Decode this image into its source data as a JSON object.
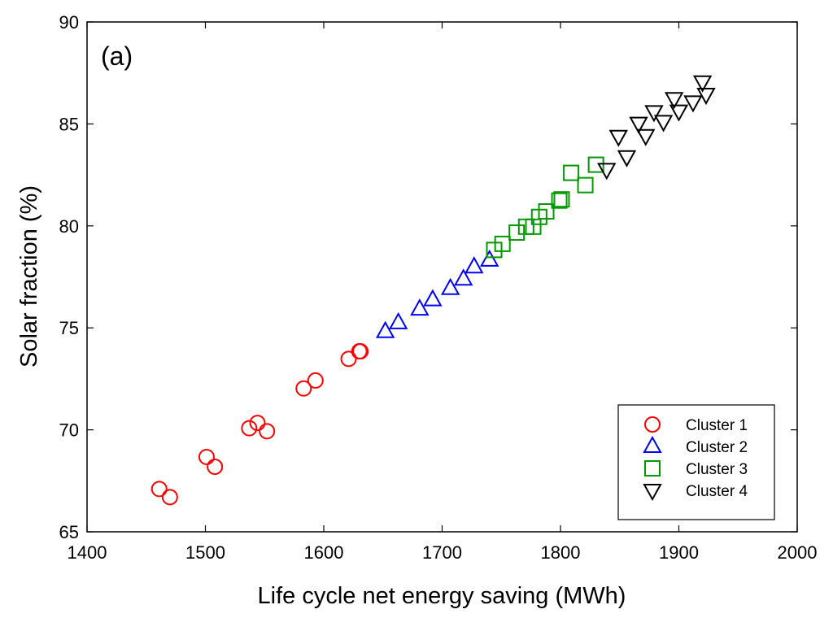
{
  "chart_data": {
    "type": "scatter",
    "panel_label": "(a)",
    "xlabel": "Life cycle net energy saving (MWh)",
    "ylabel": "Solar fraction (%)",
    "xlim": [
      1400,
      2000
    ],
    "ylim": [
      65,
      90
    ],
    "xticks": [
      1400,
      1500,
      1600,
      1700,
      1800,
      1900,
      2000
    ],
    "yticks": [
      65,
      70,
      75,
      80,
      85,
      90
    ],
    "grid": false,
    "legend_placement": "bottom-right",
    "series": [
      {
        "name": "Cluster 1",
        "marker": "circle",
        "color": "#ff0000",
        "points": [
          [
            1461,
            67.1
          ],
          [
            1470,
            66.7
          ],
          [
            1501,
            68.67
          ],
          [
            1508,
            68.19
          ],
          [
            1537,
            70.08
          ],
          [
            1544,
            70.34
          ],
          [
            1552,
            69.93
          ],
          [
            1583,
            72.03
          ],
          [
            1593,
            72.42
          ],
          [
            1621,
            73.48
          ],
          [
            1630,
            73.85
          ],
          [
            1631,
            73.85
          ]
        ]
      },
      {
        "name": "Cluster 2",
        "marker": "triangle-up",
        "color": "#0000ff",
        "points": [
          [
            1652,
            74.82
          ],
          [
            1663,
            75.25
          ],
          [
            1681,
            75.92
          ],
          [
            1692,
            76.38
          ],
          [
            1707,
            76.93
          ],
          [
            1718,
            77.39
          ],
          [
            1727,
            77.99
          ],
          [
            1740,
            78.32
          ]
        ]
      },
      {
        "name": "Cluster 3",
        "marker": "square",
        "color": "#009900",
        "points": [
          [
            1744,
            78.82
          ],
          [
            1751,
            79.12
          ],
          [
            1763,
            79.67
          ],
          [
            1771,
            79.96
          ],
          [
            1777,
            79.96
          ],
          [
            1782,
            80.44
          ],
          [
            1788,
            80.71
          ],
          [
            1799,
            81.24
          ],
          [
            1801,
            81.3
          ],
          [
            1809,
            82.6
          ],
          [
            1821,
            82.0
          ],
          [
            1830,
            83.0
          ]
        ]
      },
      {
        "name": "Cluster 4",
        "marker": "triangle-down",
        "color": "#000000",
        "points": [
          [
            1839,
            82.77
          ],
          [
            1849,
            84.39
          ],
          [
            1856,
            83.39
          ],
          [
            1866,
            85.03
          ],
          [
            1872,
            84.43
          ],
          [
            1879,
            85.6
          ],
          [
            1887,
            85.12
          ],
          [
            1896,
            86.24
          ],
          [
            1900,
            85.63
          ],
          [
            1912,
            86.08
          ],
          [
            1920,
            87.06
          ],
          [
            1923,
            86.45
          ]
        ]
      }
    ]
  }
}
